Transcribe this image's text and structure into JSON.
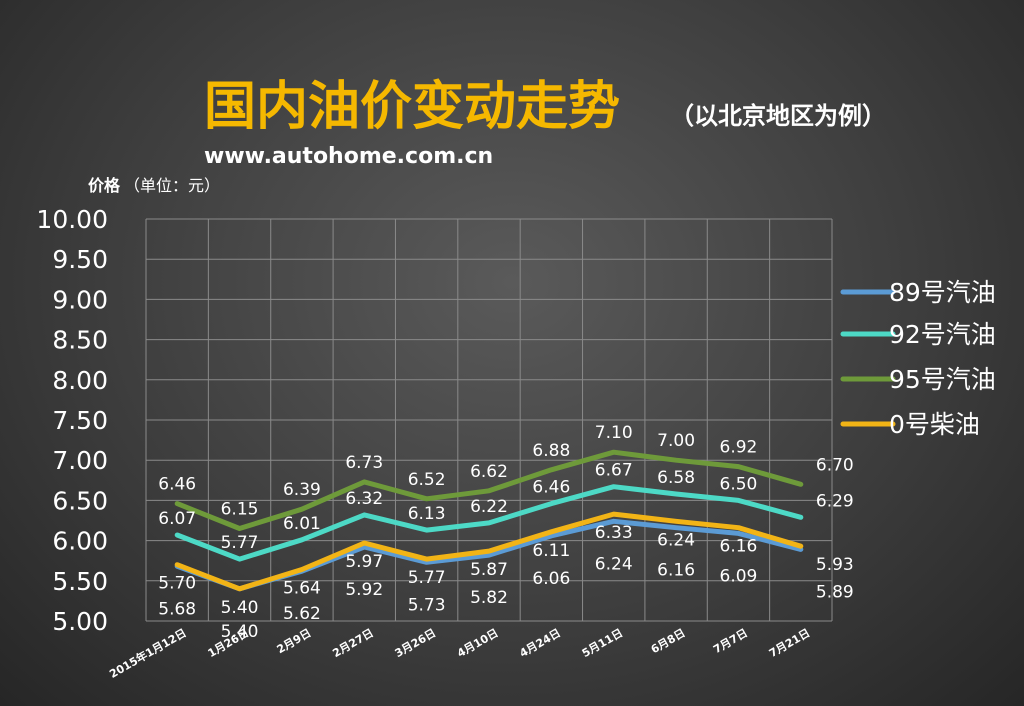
{
  "header": {
    "title": "国内油价变动走势",
    "subtitle": "（以北京地区为例）",
    "url": "www.autohome.com.cn"
  },
  "colors": {
    "title": "#f5b800",
    "text": "#ffffff",
    "grid": "#8a8a8a",
    "series_89": "#5b9bd5",
    "series_92": "#4dd9c6",
    "series_95": "#6e9a3a",
    "series_0": "#f2b416"
  },
  "chart_data": {
    "type": "line",
    "ylabel": "价格",
    "yunit": "（单位：元）",
    "ylim": [
      5.0,
      10.0
    ],
    "yticks": [
      "5.00",
      "5.50",
      "6.00",
      "6.50",
      "7.00",
      "7.50",
      "8.00",
      "8.50",
      "9.00",
      "9.50",
      "10.00"
    ],
    "categories": [
      "2015年1月12日",
      "1月26日",
      "2月9日",
      "2月27日",
      "3月26日",
      "4月10日",
      "4月24日",
      "5月11日",
      "6月8日",
      "7月7日",
      "7月21日"
    ],
    "grid": true,
    "legend_position": "right",
    "series": [
      {
        "name": "89号汽油",
        "color_key": "series_89",
        "values": [
          5.68,
          5.4,
          5.62,
          5.92,
          5.73,
          5.82,
          6.06,
          6.24,
          6.16,
          6.09,
          5.89
        ]
      },
      {
        "name": "92号汽油",
        "color_key": "series_92",
        "values": [
          6.07,
          5.77,
          6.01,
          6.32,
          6.13,
          6.22,
          6.46,
          6.67,
          6.58,
          6.5,
          6.29
        ]
      },
      {
        "name": "95号汽油",
        "color_key": "series_95",
        "values": [
          6.46,
          6.15,
          6.39,
          6.73,
          6.52,
          6.62,
          6.88,
          7.1,
          7.0,
          6.92,
          6.7
        ]
      },
      {
        "name": "0号柴油",
        "color_key": "series_0",
        "values": [
          5.7,
          5.4,
          5.64,
          5.97,
          5.77,
          5.87,
          6.11,
          6.33,
          6.24,
          6.16,
          5.93
        ]
      }
    ]
  }
}
